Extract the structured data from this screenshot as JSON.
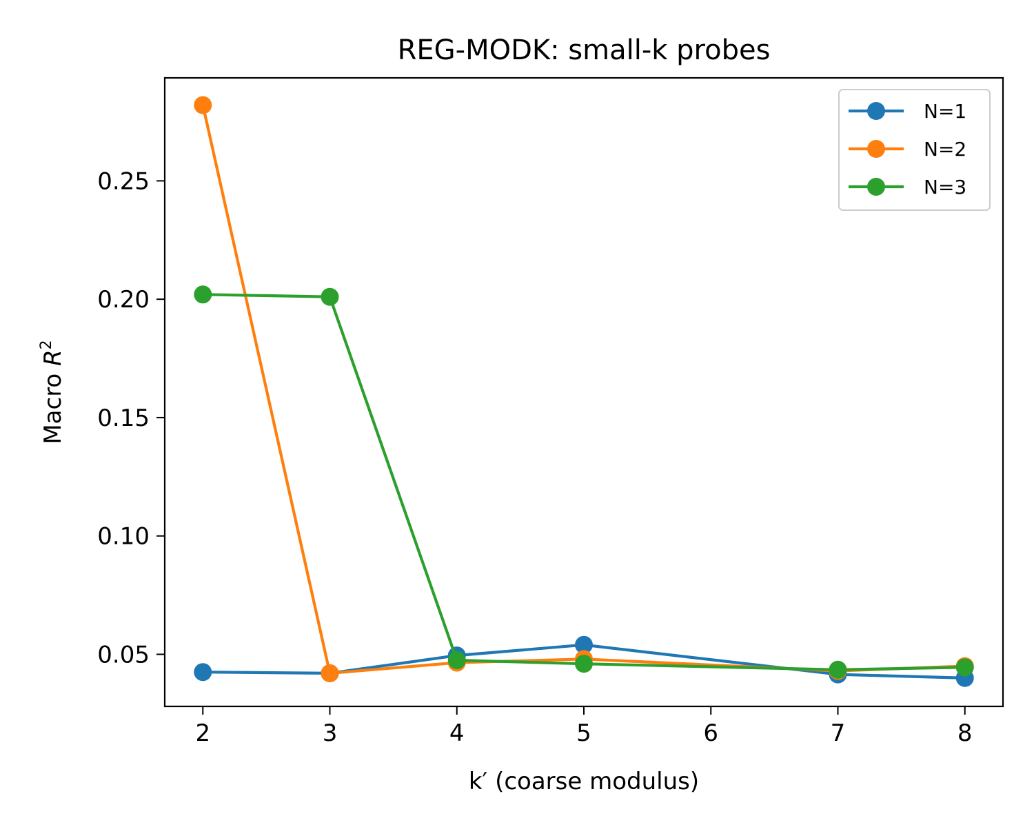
{
  "chart_data": {
    "type": "line",
    "title": "REG-MODK: small-k probes",
    "xlabel": "k′ (coarse modulus)",
    "ylabel_prefix": "Macro ",
    "ylabel_var": "R",
    "ylabel_sup": "2",
    "x": [
      2,
      3,
      4,
      5,
      7,
      8
    ],
    "xticks": [
      2,
      3,
      4,
      5,
      6,
      7,
      8
    ],
    "xtick_labels": [
      "2",
      "3",
      "4",
      "5",
      "6",
      "7",
      "8"
    ],
    "yticks": [
      0.05,
      0.1,
      0.15,
      0.2,
      0.25
    ],
    "ytick_labels": [
      "0.05",
      "0.10",
      "0.15",
      "0.20",
      "0.25"
    ],
    "xlim": [
      1.7,
      8.3
    ],
    "ylim": [
      0.028,
      0.2935
    ],
    "grid": false,
    "legend_position": "top-right",
    "series": [
      {
        "name": "N=1",
        "color": "#1f77b4",
        "values": [
          0.0425,
          0.042,
          0.0495,
          0.054,
          0.0415,
          0.04
        ]
      },
      {
        "name": "N=2",
        "color": "#ff7f0e",
        "values": [
          0.282,
          0.042,
          0.0465,
          0.048,
          0.043,
          0.045
        ]
      },
      {
        "name": "N=3",
        "color": "#2ca02c",
        "values": [
          0.202,
          0.201,
          0.0475,
          0.046,
          0.0435,
          0.0445
        ]
      }
    ]
  }
}
